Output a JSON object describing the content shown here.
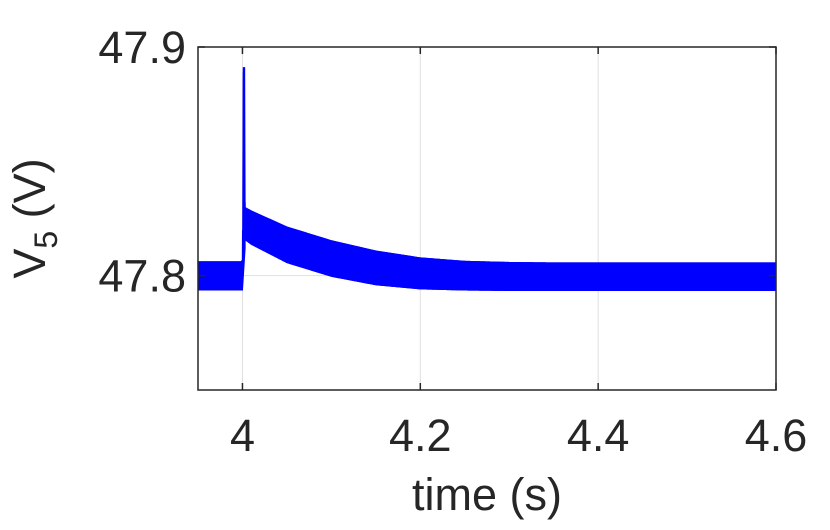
{
  "chart_data": {
    "type": "line",
    "title": "",
    "xlabel": "time (s)",
    "ylabel": "V",
    "ylabel_subscript": "5",
    "ylabel_suffix": " (V)",
    "xlim": [
      3.95,
      4.6
    ],
    "ylim": [
      47.75,
      47.9
    ],
    "xticks": [
      4,
      4.2,
      4.4,
      4.6
    ],
    "xtick_labels": [
      "4",
      "4.2",
      "4.4",
      "4.6"
    ],
    "yticks": [
      47.8,
      47.9
    ],
    "ytick_labels": [
      "47.8",
      "47.9"
    ],
    "grid": true,
    "legend": "none",
    "series": [
      {
        "color": "#0000ff",
        "style": "dense oscillation band (ripple)",
        "envelope_x": [
          3.95,
          3.999,
          4.0,
          4.001,
          4.003,
          4.01,
          4.05,
          4.1,
          4.15,
          4.2,
          4.25,
          4.3,
          4.35,
          4.4,
          4.45,
          4.5,
          4.55,
          4.6
        ],
        "upper": [
          47.8063,
          47.8063,
          47.808,
          47.891,
          47.83,
          47.8285,
          47.8215,
          47.8155,
          47.811,
          47.808,
          47.8065,
          47.806,
          47.8058,
          47.8058,
          47.8058,
          47.8058,
          47.8058,
          47.8058
        ],
        "lower": [
          47.7935,
          47.7935,
          47.7935,
          47.8075,
          47.8155,
          47.8135,
          47.8055,
          47.7995,
          47.7958,
          47.794,
          47.7935,
          47.7933,
          47.7933,
          47.7933,
          47.7933,
          47.7933,
          47.7933,
          47.7933
        ]
      }
    ],
    "axis_color": "#262626",
    "grid_color": "#dfdfdf"
  }
}
